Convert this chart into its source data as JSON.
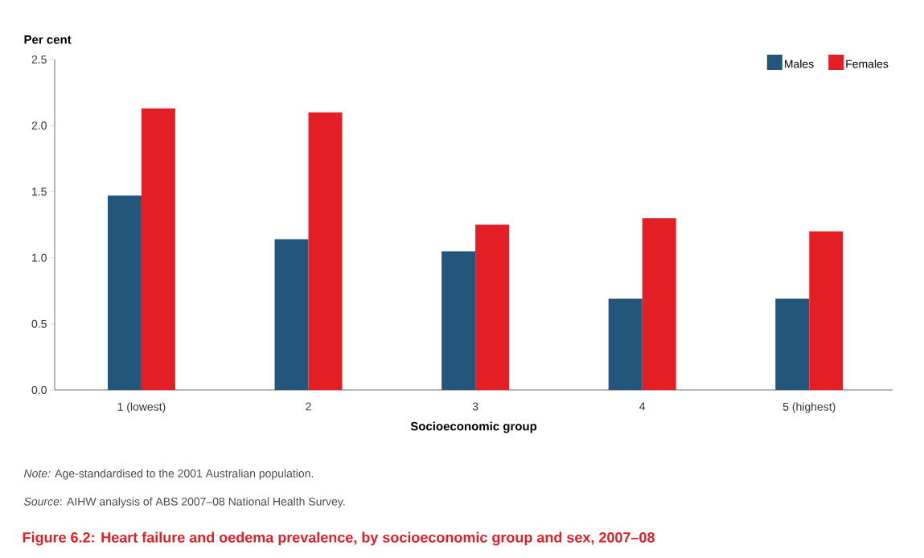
{
  "chart_data": {
    "type": "bar",
    "title": "Figure 6.2: Heart failure and oedema prevalence, by socioeconomic group and sex, 2007–08",
    "xlabel": "Socioeconomic group",
    "ylabel": "Per cent",
    "categories": [
      "1 (lowest)",
      "2",
      "3",
      "4",
      "5 (highest)"
    ],
    "series": [
      {
        "name": "Males",
        "color": "#24557a",
        "values": [
          1.47,
          1.14,
          1.05,
          0.69,
          0.69
        ]
      },
      {
        "name": "Females",
        "color": "#e31e24",
        "values": [
          2.13,
          2.1,
          1.25,
          1.3,
          1.2
        ]
      }
    ],
    "ylim": [
      0,
      2.5
    ],
    "yticks": [
      {
        "value": 0,
        "label": "0.0"
      },
      {
        "value": 0.5,
        "label": "0.5"
      },
      {
        "value": 1,
        "label": "1.0"
      },
      {
        "value": 1.5,
        "label": "1.5"
      },
      {
        "value": 2,
        "label": "2.0"
      },
      {
        "value": 2.5,
        "label": "2.5"
      }
    ],
    "legend": "top right",
    "grid": false,
    "annotations": [
      "*Note:* Age-standardised to the 2001 Australian population.",
      "*Source*: AIHW analysis of ABS 2007–08 National Health Survey."
    ]
  }
}
